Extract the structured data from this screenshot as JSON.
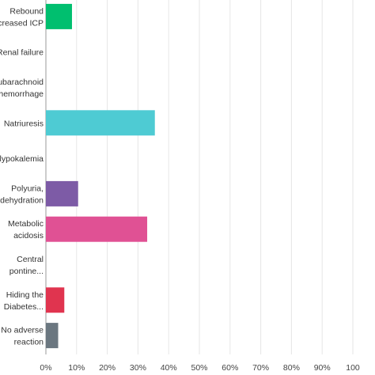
{
  "chart_data": {
    "type": "bar",
    "orientation": "horizontal",
    "categories": [
      [
        "Rebound",
        "creased ICP"
      ],
      [
        "Renal failure"
      ],
      [
        "ubarachnoid",
        "hemorrhage"
      ],
      [
        "Natriuresis"
      ],
      [
        "lypokalemia"
      ],
      [
        "Polyuria,",
        "dehydration"
      ],
      [
        "Metabolic",
        "acidosis"
      ],
      [
        "Central",
        "pontine..."
      ],
      [
        "Hiding the",
        "Diabetes..."
      ],
      [
        "No adverse",
        "reaction"
      ]
    ],
    "values": [
      8.5,
      0,
      0,
      35.5,
      0,
      10.5,
      33,
      0,
      6,
      4
    ],
    "colors": [
      "#00bf6f",
      "#507cb6",
      "#f05b24",
      "#4ecbd3",
      "#ffb54a",
      "#7d5ba6",
      "#e05194",
      "#f9be00",
      "#e0344f",
      "#6b7780"
    ],
    "xlim": [
      0,
      100
    ],
    "xticks": [
      "0%",
      "10%",
      "20%",
      "30%",
      "40%",
      "50%",
      "60%",
      "70%",
      "80%",
      "90%",
      "100"
    ],
    "grid": true,
    "legend": "none",
    "title": "",
    "xlabel": "",
    "ylabel": ""
  }
}
